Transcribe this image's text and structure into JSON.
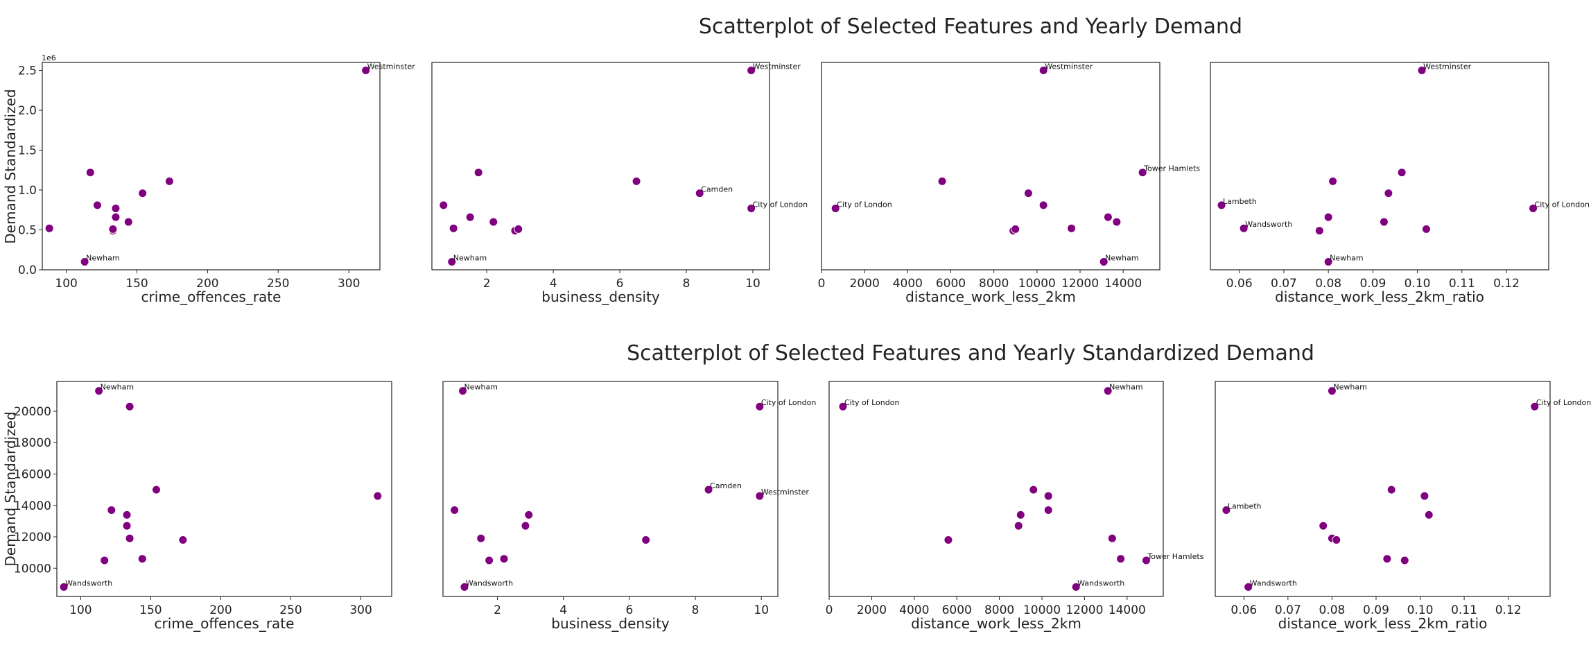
{
  "chart_data": [
    {
      "type": "scatter",
      "title": "Scatterplot of Selected Features and Yearly Demand",
      "ylabel": "Demand Standardized",
      "ylim": [
        0,
        2.6
      ],
      "yticks": [
        0.0,
        0.5,
        1.0,
        1.5,
        2.0,
        2.5
      ],
      "ytick_labels": [
        "0.0",
        "0.5",
        "1.0",
        "1.5",
        "2.0",
        "2.5"
      ],
      "y_offset_text": "1e6",
      "y": [
        0.52,
        0.1,
        1.22,
        0.81,
        0.49,
        0.51,
        0.66,
        0.6,
        0.96,
        1.11,
        2.5,
        0.77
      ],
      "panels": [
        {
          "xlabel": "crime_offences_rate",
          "xlim": [
            83,
            322
          ],
          "xticks": [
            100,
            150,
            200,
            250,
            300
          ],
          "x": [
            88,
            113,
            117,
            122,
            133,
            133,
            135,
            144,
            154,
            173,
            312,
            135
          ],
          "annotations": [
            {
              "i": 1,
              "text": "Newham"
            },
            {
              "i": 10,
              "text": "Westminster"
            }
          ]
        },
        {
          "xlabel": "business_density",
          "xlim": [
            0.35,
            10.5
          ],
          "xticks": [
            2,
            4,
            6,
            8,
            10
          ],
          "x": [
            1.0,
            0.95,
            1.75,
            0.7,
            2.85,
            2.95,
            1.5,
            2.2,
            8.4,
            6.5,
            9.95,
            9.95
          ],
          "annotations": [
            {
              "i": 1,
              "text": "Newham"
            },
            {
              "i": 10,
              "text": "Westminster"
            },
            {
              "i": 8,
              "text": "Camden"
            },
            {
              "i": 11,
              "text": "City of London"
            }
          ]
        },
        {
          "xlabel": "distance_work_less_2km",
          "xlim": [
            0,
            15700
          ],
          "xticks": [
            0,
            2000,
            4000,
            6000,
            8000,
            10000,
            12000,
            14000
          ],
          "x": [
            11600,
            13100,
            14900,
            10300,
            8900,
            9000,
            13300,
            13700,
            9600,
            5600,
            10300,
            650
          ],
          "annotations": [
            {
              "i": 1,
              "text": "Newham"
            },
            {
              "i": 10,
              "text": "Westminster"
            },
            {
              "i": 2,
              "text": "Tower Hamlets"
            },
            {
              "i": 11,
              "text": "City of London"
            }
          ]
        },
        {
          "xlabel": "distance_work_less_2km_ratio",
          "xlim": [
            0.0535,
            0.1295
          ],
          "xticks": [
            0.06,
            0.07,
            0.08,
            0.09,
            0.1,
            0.11,
            0.12
          ],
          "xtick_labels": [
            "0.06",
            "0.07",
            "0.08",
            "0.09",
            "0.10",
            "0.11",
            "0.12"
          ],
          "x": [
            0.061,
            0.08,
            0.0965,
            0.056,
            0.078,
            0.102,
            0.08,
            0.0925,
            0.0935,
            0.081,
            0.101,
            0.126
          ],
          "annotations": [
            {
              "i": 1,
              "text": "Newham"
            },
            {
              "i": 10,
              "text": "Westminster"
            },
            {
              "i": 3,
              "text": "Lambeth"
            },
            {
              "i": 0,
              "text": "Wandsworth"
            },
            {
              "i": 11,
              "text": "City of London"
            }
          ]
        }
      ]
    },
    {
      "type": "scatter",
      "title": "Scatterplot of Selected Features and Yearly Standardized Demand",
      "ylabel": "Demand Standardized",
      "ylim": [
        8200,
        21900
      ],
      "yticks": [
        10000,
        12000,
        14000,
        16000,
        18000,
        20000
      ],
      "ytick_labels": [
        "10000",
        "12000",
        "14000",
        "16000",
        "18000",
        "20000"
      ],
      "y": [
        8800,
        21300,
        10500,
        13700,
        12700,
        13400,
        11900,
        10600,
        15000,
        11800,
        14600,
        20300
      ],
      "panels": [
        {
          "xlabel": "crime_offences_rate",
          "xlim": [
            83,
            322
          ],
          "xticks": [
            100,
            150,
            200,
            250,
            300
          ],
          "x": [
            88,
            113,
            117,
            122,
            133,
            133,
            135,
            144,
            154,
            173,
            312,
            135
          ],
          "annotations": [
            {
              "i": 1,
              "text": "Newham"
            },
            {
              "i": 0,
              "text": "Wandsworth"
            }
          ]
        },
        {
          "xlabel": "business_density",
          "xlim": [
            0.35,
            10.5
          ],
          "xticks": [
            2,
            4,
            6,
            8,
            10
          ],
          "x": [
            1.0,
            0.95,
            1.75,
            0.7,
            2.85,
            2.95,
            1.5,
            2.2,
            8.4,
            6.5,
            9.95,
            9.95
          ],
          "annotations": [
            {
              "i": 1,
              "text": "Newham"
            },
            {
              "i": 0,
              "text": "Wandsworth"
            },
            {
              "i": 8,
              "text": "Camden"
            },
            {
              "i": 10,
              "text": "Westminster"
            },
            {
              "i": 11,
              "text": "City of London"
            }
          ]
        },
        {
          "xlabel": "distance_work_less_2km",
          "xlim": [
            0,
            15700
          ],
          "xticks": [
            0,
            2000,
            4000,
            6000,
            8000,
            10000,
            12000,
            14000
          ],
          "x": [
            11600,
            13100,
            14900,
            10300,
            8900,
            9000,
            13300,
            13700,
            9600,
            5600,
            10300,
            650
          ],
          "annotations": [
            {
              "i": 1,
              "text": "Newham"
            },
            {
              "i": 0,
              "text": "Wandsworth"
            },
            {
              "i": 2,
              "text": "Tower Hamlets"
            },
            {
              "i": 11,
              "text": "City of London"
            }
          ]
        },
        {
          "xlabel": "distance_work_less_2km_ratio",
          "xlim": [
            0.0535,
            0.1295
          ],
          "xticks": [
            0.06,
            0.07,
            0.08,
            0.09,
            0.1,
            0.11,
            0.12
          ],
          "xtick_labels": [
            "0.06",
            "0.07",
            "0.08",
            "0.09",
            "0.10",
            "0.11",
            "0.12"
          ],
          "x": [
            0.061,
            0.08,
            0.0965,
            0.056,
            0.078,
            0.102,
            0.08,
            0.0925,
            0.0935,
            0.081,
            0.101,
            0.126
          ],
          "annotations": [
            {
              "i": 1,
              "text": "Newham"
            },
            {
              "i": 0,
              "text": "Wandsworth"
            },
            {
              "i": 3,
              "text": "Lambeth"
            },
            {
              "i": 11,
              "text": "City of London"
            }
          ]
        }
      ]
    }
  ],
  "colors": {
    "marker": "#800080",
    "frame": "#222222"
  }
}
